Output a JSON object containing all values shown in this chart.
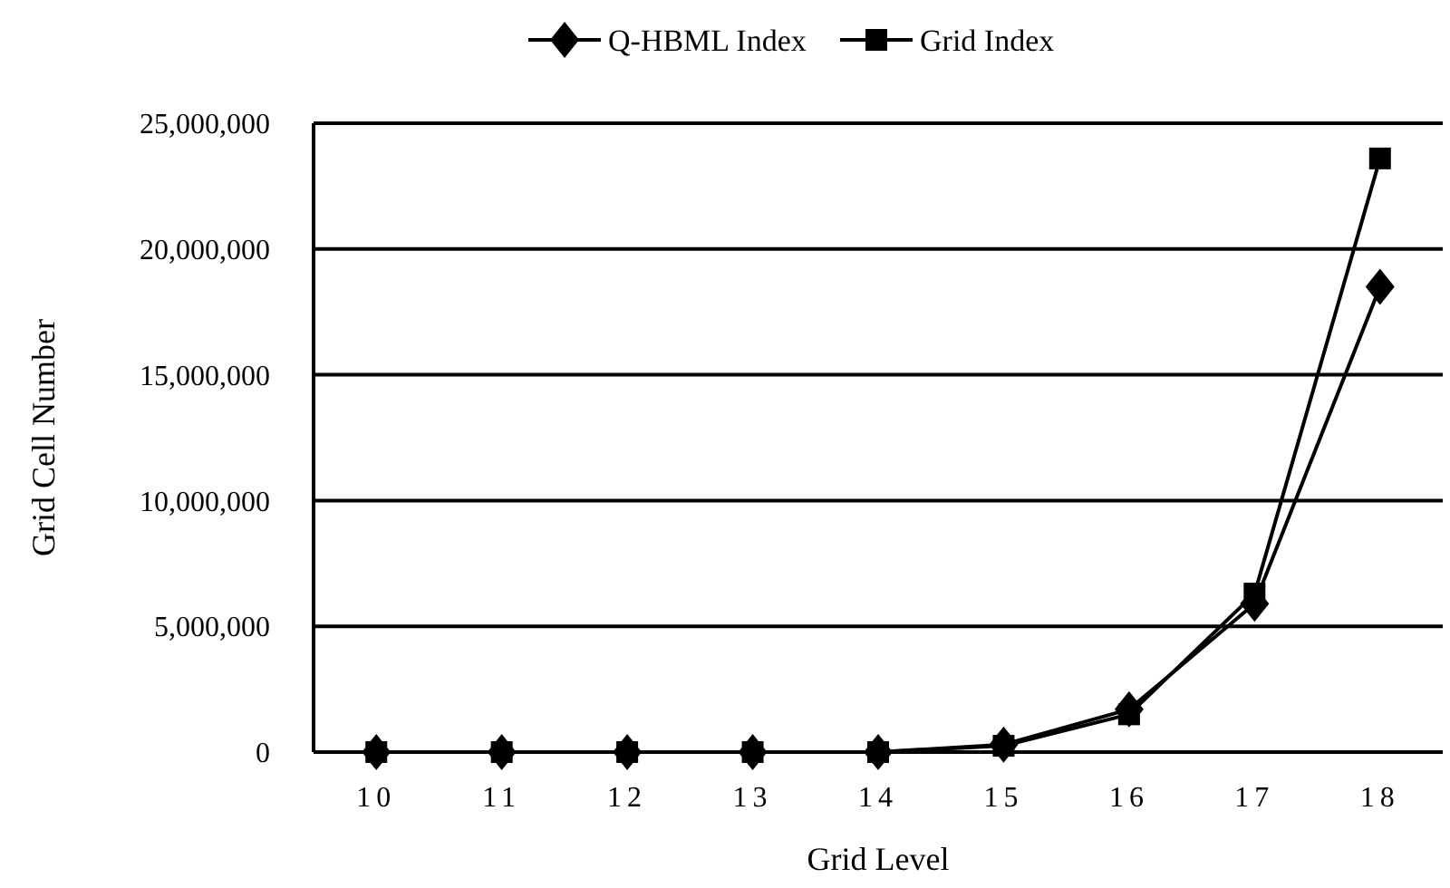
{
  "chart_data": {
    "type": "line",
    "xlabel": "Grid Level",
    "ylabel": "Grid Cell Number",
    "categories": [
      "10",
      "11",
      "12",
      "13",
      "14",
      "15",
      "16",
      "17",
      "18"
    ],
    "series": [
      {
        "name": "Q-HBML Index",
        "color": "#000000",
        "marker": "diamond",
        "values": [
          0,
          0,
          0,
          0,
          0,
          300000,
          1700000,
          5900000,
          18500000
        ]
      },
      {
        "name": "Grid Index",
        "color": "#000000",
        "marker": "square",
        "values": [
          0,
          0,
          0,
          0,
          0,
          250000,
          1500000,
          6300000,
          23600000
        ]
      }
    ],
    "ylim": [
      0,
      25000000
    ],
    "yticks": [
      {
        "value": 0,
        "label": "0"
      },
      {
        "value": 5000000,
        "label": "5,000,000"
      },
      {
        "value": 10000000,
        "label": "10,000,000"
      },
      {
        "value": 15000000,
        "label": "15,000,000"
      },
      {
        "value": 20000000,
        "label": "20,000,000"
      },
      {
        "value": 25000000,
        "label": "25,000,000"
      }
    ],
    "grid": "y",
    "legend": "top"
  }
}
